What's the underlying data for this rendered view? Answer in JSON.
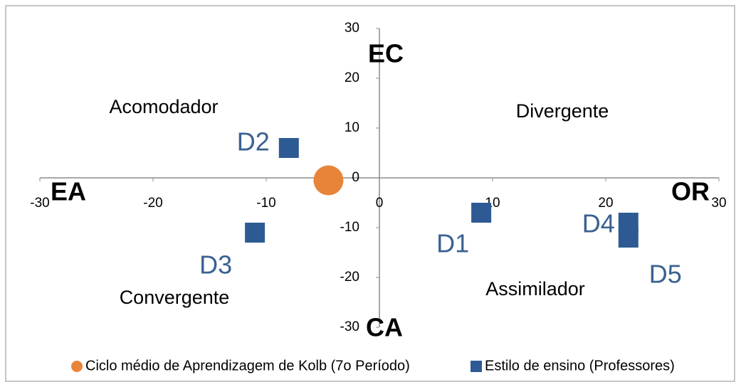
{
  "chart_data": {
    "type": "scatter",
    "xlim": [
      -30,
      30
    ],
    "ylim": [
      -30,
      30
    ],
    "xticks": [
      -30,
      -20,
      -10,
      0,
      10,
      20,
      30
    ],
    "yticks": [
      -30,
      -20,
      -10,
      0,
      10,
      20,
      30
    ],
    "grid": false,
    "legend": "bottom",
    "axis_labels": {
      "top": "EC",
      "bottom": "CA",
      "left": "EA",
      "right": "OR"
    },
    "annotations": [
      "Acomodador",
      "Divergente",
      "Convergente",
      "Assimilador"
    ],
    "series": [
      {
        "name": "Ciclo médio de Aprendizagem de Kolb (7o Período)",
        "color": "#e8843a",
        "marker": "circle",
        "x": [
          -4.5
        ],
        "values": [
          -0.5
        ]
      },
      {
        "name": "Estilo de ensino (Professores)",
        "color": "#2e5a94",
        "marker": "square",
        "x": [
          9,
          -8,
          -11,
          22,
          22
        ],
        "values": [
          -7,
          6,
          -11,
          -9,
          -12
        ],
        "point_labels": [
          "D1",
          "D2",
          "D3",
          "D4",
          "D5"
        ]
      }
    ]
  }
}
